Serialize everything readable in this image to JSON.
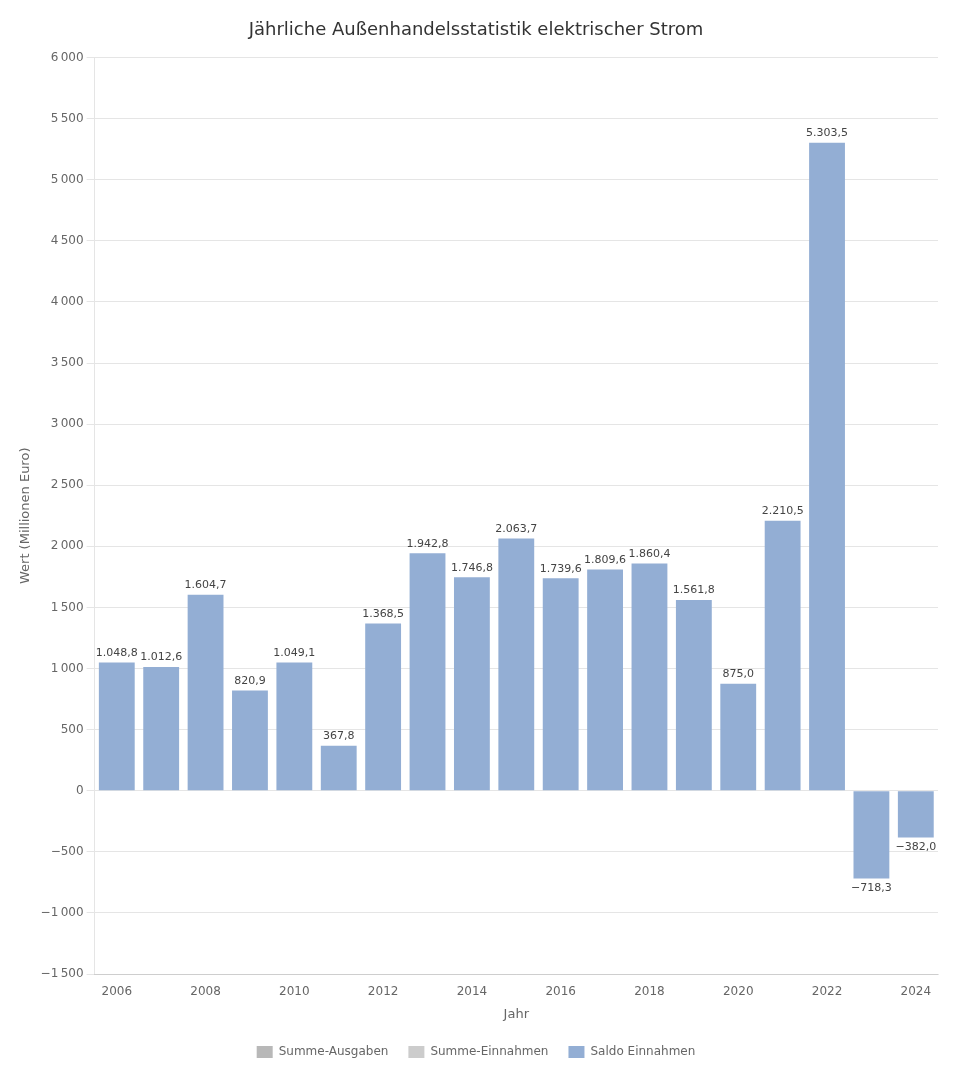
{
  "chart_data": {
    "type": "bar",
    "title": "Jährliche Außenhandelsstatistik elektrischer Strom",
    "xlabel": "Jahr",
    "ylabel": "Wert (Millionen Euro)",
    "categories": [
      "2006",
      null,
      "2008",
      null,
      "2010",
      null,
      "2012",
      null,
      "2014",
      null,
      "2016",
      null,
      "2018",
      null,
      "2020",
      null,
      "2022",
      null,
      "2024"
    ],
    "series": [
      {
        "name": "Summe-Ausgaben",
        "color": "#b8b8b8",
        "values": [
          null,
          null,
          null,
          null,
          null,
          null,
          null,
          null,
          null,
          null,
          null,
          null,
          null,
          null,
          null,
          null,
          null,
          null,
          null
        ]
      },
      {
        "name": "Summe-Einnahmen",
        "color": "#cccccc",
        "values": [
          null,
          null,
          null,
          null,
          null,
          null,
          null,
          null,
          null,
          null,
          null,
          null,
          null,
          null,
          null,
          null,
          null,
          null,
          null
        ]
      },
      {
        "name": "Saldo Einnahmen",
        "color": "#93aed4",
        "values": [
          1048.8,
          1012.6,
          1604.7,
          820.9,
          1049.1,
          367.8,
          1368.5,
          1942.8,
          1746.8,
          2063.7,
          1739.6,
          1809.6,
          1860.4,
          1561.8,
          875.0,
          2210.5,
          5303.5,
          -718.3,
          -382.0
        ],
        "value_labels": [
          "1.048,8",
          "1.012,6",
          "1.604,7",
          "820,9",
          "1.049,1",
          "367,8",
          "1.368,5",
          "1.942,8",
          "1.746,8",
          "2.063,7",
          "1.739,6",
          "1.809,6",
          "1.860,4",
          "1.561,8",
          "875,0",
          "2.210,5",
          "5.303,5",
          "−718,3",
          "−382,0"
        ]
      }
    ],
    "ylim": [
      -1500,
      6000
    ],
    "yticks": [
      {
        "value": -1500,
        "label": "−1 500"
      },
      {
        "value": -1000,
        "label": "−1 000"
      },
      {
        "value": -500,
        "label": "−500"
      },
      0,
      500,
      {
        "value": 1000,
        "label": "1 000"
      },
      {
        "value": 1500,
        "label": "1 500"
      },
      {
        "value": 2000,
        "label": "2 000"
      },
      {
        "value": 2500,
        "label": "2 500"
      },
      {
        "value": 3000,
        "label": "3 000"
      },
      {
        "value": 3500,
        "label": "3 500"
      },
      {
        "value": 4000,
        "label": "4 000"
      },
      {
        "value": 4500,
        "label": "4 500"
      },
      {
        "value": 5000,
        "label": "5 000"
      },
      {
        "value": 5500,
        "label": "5 500"
      },
      {
        "value": 6000,
        "label": "6 000"
      }
    ],
    "grid": true,
    "legend": "bottom",
    "data_labels": true
  }
}
